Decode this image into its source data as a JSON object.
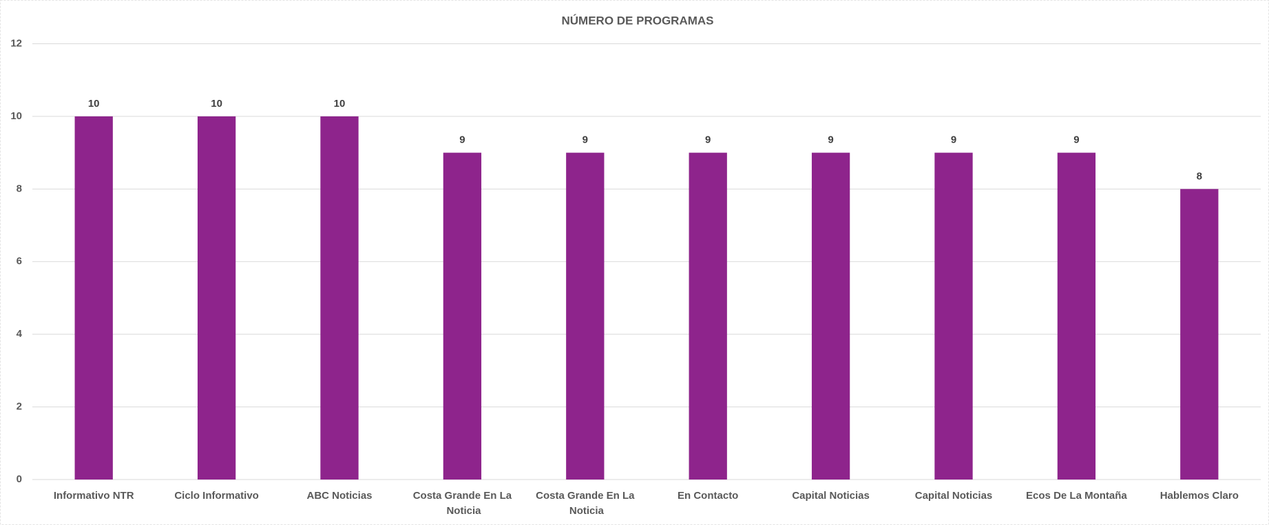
{
  "chart_data": {
    "type": "bar",
    "title": "NÚMERO DE PROGRAMAS",
    "categories": [
      "Informativo NTR",
      "Ciclo Informativo",
      "ABC Noticias",
      "Costa Grande En La Noticia",
      "Costa Grande En La Noticia",
      "En Contacto",
      "Capital Noticias",
      "Capital Noticias",
      "Ecos De La Montaña",
      "Hablemos Claro"
    ],
    "values": [
      10,
      10,
      10,
      9,
      9,
      9,
      9,
      9,
      9,
      8
    ],
    "color": "#8e248c",
    "ylim": [
      0,
      12
    ],
    "yticks": [
      0,
      2,
      4,
      6,
      8,
      10,
      12
    ],
    "grid": true,
    "data_labels": true
  }
}
